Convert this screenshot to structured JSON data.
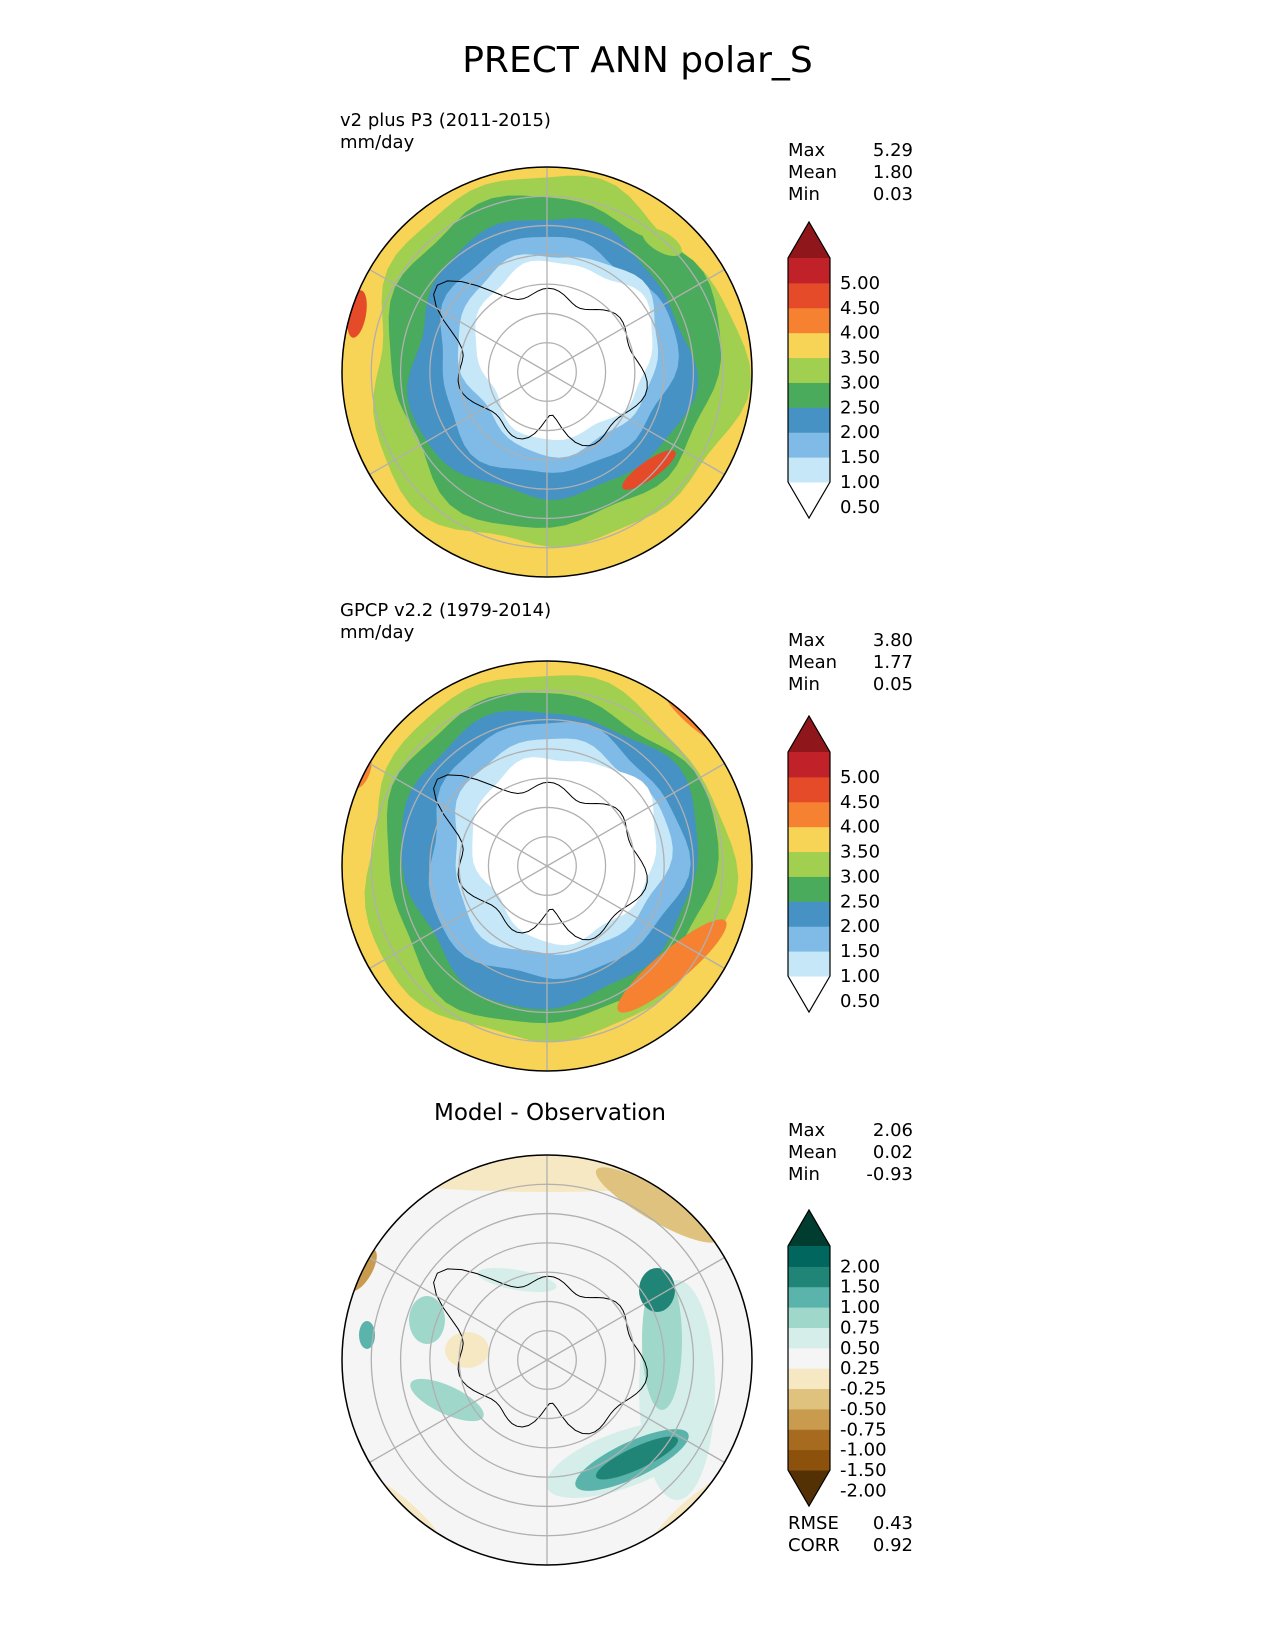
{
  "figure": {
    "title": "PRECT ANN polar_S"
  },
  "panels": [
    {
      "name": "model",
      "title": "v2 plus P3 (2011-2015)",
      "units": "mm/day",
      "stats": {
        "max_label": "Max",
        "max": "5.29",
        "mean_label": "Mean",
        "mean": "1.80",
        "min_label": "Min",
        "min": "0.03"
      },
      "colorbar": {
        "labels": [
          "5.00",
          "4.50",
          "4.00",
          "3.50",
          "3.00",
          "2.50",
          "2.00",
          "1.50",
          "1.00",
          "0.50"
        ],
        "colors": [
          "#ffffff",
          "#c6e7f7",
          "#7fbbe6",
          "#4692c4",
          "#4aab5c",
          "#a1cf50",
          "#f7d356",
          "#f58131",
          "#e54a29",
          "#c1222a",
          "#8f161b"
        ]
      }
    },
    {
      "name": "obs",
      "title": "GPCP v2.2 (1979-2014)",
      "units": "mm/day",
      "stats": {
        "max_label": "Max",
        "max": "3.80",
        "mean_label": "Mean",
        "mean": "1.77",
        "min_label": "Min",
        "min": "0.05"
      },
      "colorbar": {
        "labels": [
          "5.00",
          "4.50",
          "4.00",
          "3.50",
          "3.00",
          "2.50",
          "2.00",
          "1.50",
          "1.00",
          "0.50"
        ],
        "colors": [
          "#ffffff",
          "#c6e7f7",
          "#7fbbe6",
          "#4692c4",
          "#4aab5c",
          "#a1cf50",
          "#f7d356",
          "#f58131",
          "#e54a29",
          "#c1222a",
          "#8f161b"
        ]
      }
    },
    {
      "name": "diff",
      "title": "Model - Observation",
      "stats": {
        "max_label": "Max",
        "max": "2.06",
        "mean_label": "Mean",
        "mean": "0.02",
        "min_label": "Min",
        "min": "-0.93"
      },
      "extra": {
        "rmse_label": "RMSE",
        "rmse": "0.43",
        "corr_label": "CORR",
        "corr": "0.92"
      },
      "colorbar": {
        "labels": [
          "2.00",
          "1.50",
          "1.00",
          "0.75",
          "0.50",
          "0.25",
          "-0.25",
          "-0.50",
          "-0.75",
          "-1.00",
          "-1.50",
          "-2.00"
        ],
        "colors": [
          "#543005",
          "#8c510a",
          "#a76b20",
          "#c99b4f",
          "#dfc27d",
          "#f6e8c3",
          "#f5f5f5",
          "#d5eee9",
          "#9fd7cb",
          "#5ab4ac",
          "#208577",
          "#01665e",
          "#003c30"
        ]
      }
    }
  ]
}
